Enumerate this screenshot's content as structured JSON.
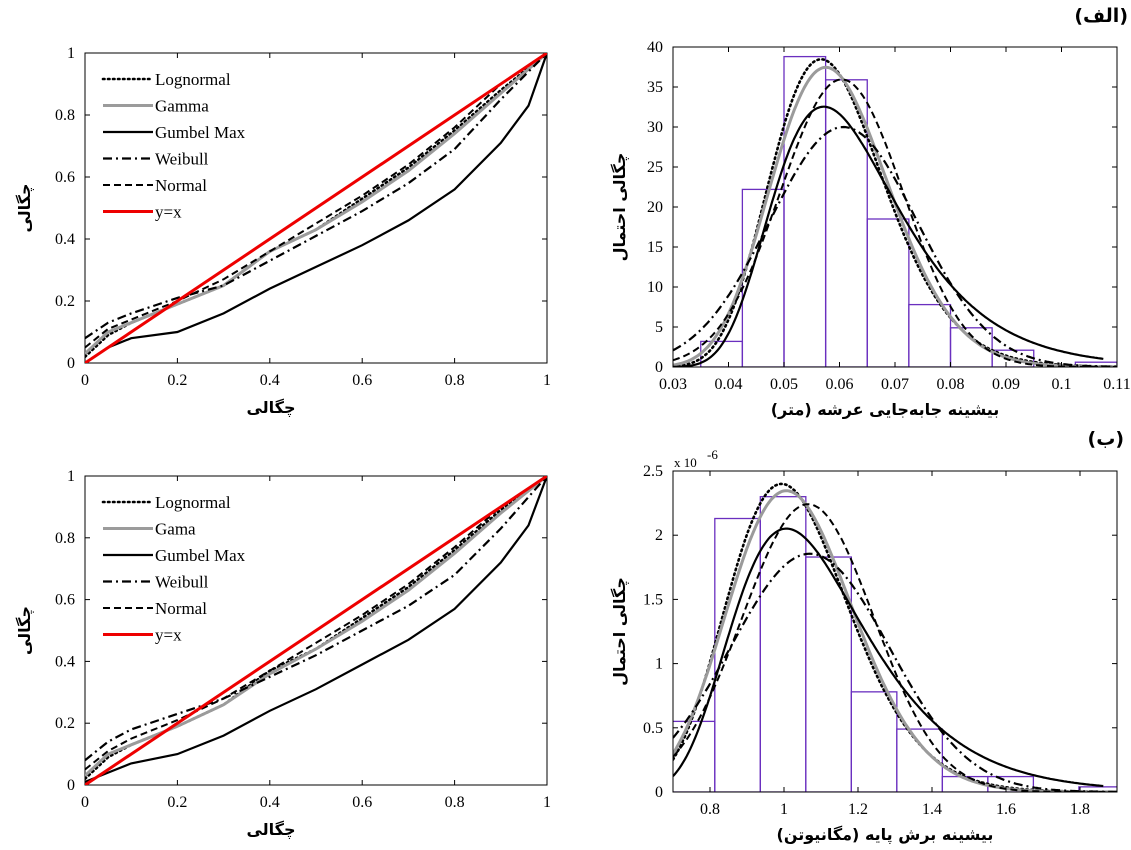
{
  "chart_data": [
    {
      "id": "pp_top",
      "type": "line",
      "subtype": "probability-probability",
      "xlabel": "چگالی",
      "ylabel": "چگالی",
      "xlim": [
        0,
        1
      ],
      "ylim": [
        0,
        1
      ],
      "xticks": [
        "0",
        "0.2",
        "0.4",
        "0.6",
        "0.8",
        "1"
      ],
      "yticks": [
        "0",
        "0.2",
        "0.4",
        "0.6",
        "0.8",
        "1"
      ],
      "legend_position": "top-left",
      "series": [
        {
          "name": "Lognormal",
          "style": "dotted",
          "color": "#000000",
          "points": [
            [
              0,
              0.02
            ],
            [
              0.05,
              0.09
            ],
            [
              0.1,
              0.13
            ],
            [
              0.2,
              0.19
            ],
            [
              0.3,
              0.25
            ],
            [
              0.4,
              0.36
            ],
            [
              0.5,
              0.43
            ],
            [
              0.6,
              0.53
            ],
            [
              0.7,
              0.63
            ],
            [
              0.8,
              0.75
            ],
            [
              0.9,
              0.88
            ],
            [
              1,
              1
            ]
          ]
        },
        {
          "name": "Gamma",
          "style": "solid-gray",
          "color": "#999999",
          "points": [
            [
              0,
              0.03
            ],
            [
              0.05,
              0.1
            ],
            [
              0.1,
              0.13
            ],
            [
              0.2,
              0.19
            ],
            [
              0.3,
              0.25
            ],
            [
              0.4,
              0.36
            ],
            [
              0.5,
              0.43
            ],
            [
              0.6,
              0.52
            ],
            [
              0.7,
              0.62
            ],
            [
              0.8,
              0.74
            ],
            [
              0.9,
              0.87
            ],
            [
              1,
              1
            ]
          ]
        },
        {
          "name": "Gumbel Max",
          "style": "solid",
          "color": "#000000",
          "points": [
            [
              0,
              0.0
            ],
            [
              0.05,
              0.05
            ],
            [
              0.1,
              0.08
            ],
            [
              0.2,
              0.1
            ],
            [
              0.3,
              0.16
            ],
            [
              0.4,
              0.24
            ],
            [
              0.5,
              0.31
            ],
            [
              0.6,
              0.38
            ],
            [
              0.7,
              0.46
            ],
            [
              0.8,
              0.56
            ],
            [
              0.9,
              0.71
            ],
            [
              0.96,
              0.83
            ],
            [
              1,
              1
            ]
          ]
        },
        {
          "name": "Weibull",
          "style": "dash-dot",
          "color": "#000000",
          "points": [
            [
              0,
              0.08
            ],
            [
              0.05,
              0.13
            ],
            [
              0.1,
              0.16
            ],
            [
              0.2,
              0.21
            ],
            [
              0.3,
              0.25
            ],
            [
              0.4,
              0.33
            ],
            [
              0.5,
              0.41
            ],
            [
              0.6,
              0.49
            ],
            [
              0.7,
              0.58
            ],
            [
              0.8,
              0.69
            ],
            [
              0.9,
              0.85
            ],
            [
              1,
              1
            ]
          ]
        },
        {
          "name": "Normal",
          "style": "dashed",
          "color": "#000000",
          "points": [
            [
              0,
              0.05
            ],
            [
              0.05,
              0.11
            ],
            [
              0.1,
              0.14
            ],
            [
              0.2,
              0.2
            ],
            [
              0.3,
              0.27
            ],
            [
              0.4,
              0.36
            ],
            [
              0.5,
              0.45
            ],
            [
              0.6,
              0.54
            ],
            [
              0.7,
              0.64
            ],
            [
              0.8,
              0.76
            ],
            [
              0.9,
              0.9
            ],
            [
              1,
              1
            ]
          ]
        },
        {
          "name": "y=x",
          "style": "solid-red",
          "color": "#ee0000",
          "points": [
            [
              0,
              0
            ],
            [
              1,
              1
            ]
          ]
        }
      ]
    },
    {
      "id": "hist_top",
      "type": "bar",
      "subtype": "histogram-with-pdf",
      "xlabel": "بیشینه جابه‌جایی عرشه (متر)",
      "ylabel": "چگالی احتمال",
      "xlim": [
        0.03,
        0.11
      ],
      "ylim": [
        0,
        40
      ],
      "xticks": [
        "0.03",
        "0.04",
        "0.05",
        "0.06",
        "0.07",
        "0.08",
        "0.09",
        "0.1",
        "0.11"
      ],
      "yticks": [
        "0",
        "5",
        "10",
        "15",
        "20",
        "25",
        "30",
        "35",
        "40"
      ],
      "bin_edges": [
        0.035,
        0.0425,
        0.05,
        0.0575,
        0.065,
        0.0725,
        0.08,
        0.0875,
        0.095,
        0.1025,
        0.11
      ],
      "values": [
        3.2,
        22.2,
        38.8,
        35.9,
        18.5,
        7.8,
        4.9,
        2.1,
        0,
        0.6
      ],
      "bar_color": "#6a2fbf",
      "series": [
        {
          "name": "Lognormal",
          "style": "dotted",
          "dist": "lognormal",
          "mean": 0.0595,
          "sd": 0.0108
        },
        {
          "name": "Gamma",
          "style": "solid-gray",
          "dist": "gamma",
          "mean": 0.0595,
          "sd": 0.0108
        },
        {
          "name": "Gumbel Max",
          "style": "solid",
          "dist": "gumbel",
          "mean": 0.0637,
          "sd": 0.0145
        },
        {
          "name": "Weibull",
          "style": "dash-dot",
          "dist": "normal",
          "mean": 0.0607,
          "sd": 0.0133
        },
        {
          "name": "Normal",
          "style": "dashed",
          "dist": "normal",
          "mean": 0.0604,
          "sd": 0.0111
        }
      ]
    },
    {
      "id": "pp_bottom",
      "type": "line",
      "subtype": "probability-probability",
      "xlabel": "چگالی",
      "ylabel": "چگالی",
      "xlim": [
        0,
        1
      ],
      "ylim": [
        0,
        1
      ],
      "xticks": [
        "0",
        "0.2",
        "0.4",
        "0.6",
        "0.8",
        "1"
      ],
      "yticks": [
        "0",
        "0.2",
        "0.4",
        "0.6",
        "0.8",
        "1"
      ],
      "legend_position": "top-left",
      "series": [
        {
          "name": "Lognormal",
          "style": "dotted",
          "color": "#000000",
          "points": [
            [
              0,
              0.02
            ],
            [
              0.05,
              0.09
            ],
            [
              0.1,
              0.13
            ],
            [
              0.2,
              0.19
            ],
            [
              0.3,
              0.26
            ],
            [
              0.4,
              0.37
            ],
            [
              0.5,
              0.44
            ],
            [
              0.6,
              0.54
            ],
            [
              0.7,
              0.64
            ],
            [
              0.8,
              0.76
            ],
            [
              0.9,
              0.89
            ],
            [
              1,
              1
            ]
          ]
        },
        {
          "name": "Gama",
          "style": "solid-gray",
          "color": "#aaaaaa",
          "points": [
            [
              0,
              0.03
            ],
            [
              0.05,
              0.1
            ],
            [
              0.1,
              0.13
            ],
            [
              0.2,
              0.19
            ],
            [
              0.3,
              0.26
            ],
            [
              0.4,
              0.36
            ],
            [
              0.5,
              0.44
            ],
            [
              0.6,
              0.53
            ],
            [
              0.7,
              0.63
            ],
            [
              0.8,
              0.75
            ],
            [
              0.9,
              0.88
            ],
            [
              1,
              1
            ]
          ]
        },
        {
          "name": "Gumbel Max",
          "style": "solid",
          "color": "#000000",
          "points": [
            [
              0,
              0.01
            ],
            [
              0.05,
              0.04
            ],
            [
              0.1,
              0.07
            ],
            [
              0.2,
              0.1
            ],
            [
              0.3,
              0.16
            ],
            [
              0.4,
              0.24
            ],
            [
              0.5,
              0.31
            ],
            [
              0.6,
              0.39
            ],
            [
              0.7,
              0.47
            ],
            [
              0.8,
              0.57
            ],
            [
              0.9,
              0.72
            ],
            [
              0.96,
              0.84
            ],
            [
              1,
              1
            ]
          ]
        },
        {
          "name": "Weibull",
          "style": "dash-dot",
          "color": "#000000",
          "points": [
            [
              0,
              0.08
            ],
            [
              0.05,
              0.14
            ],
            [
              0.1,
              0.18
            ],
            [
              0.2,
              0.23
            ],
            [
              0.3,
              0.28
            ],
            [
              0.4,
              0.35
            ],
            [
              0.5,
              0.42
            ],
            [
              0.6,
              0.5
            ],
            [
              0.7,
              0.58
            ],
            [
              0.8,
              0.68
            ],
            [
              0.9,
              0.83
            ],
            [
              1,
              1
            ]
          ]
        },
        {
          "name": "Normal",
          "style": "dashed",
          "color": "#000000",
          "points": [
            [
              0,
              0.05
            ],
            [
              0.05,
              0.11
            ],
            [
              0.1,
              0.15
            ],
            [
              0.2,
              0.21
            ],
            [
              0.3,
              0.28
            ],
            [
              0.4,
              0.37
            ],
            [
              0.5,
              0.46
            ],
            [
              0.6,
              0.55
            ],
            [
              0.7,
              0.65
            ],
            [
              0.8,
              0.77
            ],
            [
              0.9,
              0.9
            ],
            [
              1,
              1
            ]
          ]
        },
        {
          "name": "y=x",
          "style": "solid-red",
          "color": "#ee0000",
          "points": [
            [
              0,
              0
            ],
            [
              1,
              1
            ]
          ]
        }
      ]
    },
    {
      "id": "hist_bottom",
      "type": "bar",
      "subtype": "histogram-with-pdf",
      "xlabel": "بیشینه برش پایه (مگانیوتن)",
      "ylabel": "چگالی احتمال",
      "multiplier": "x 10",
      "multiplier_exp": "-6",
      "xlim": [
        0.7,
        1.9
      ],
      "ylim": [
        0,
        2.5
      ],
      "xticks": [
        "0.8",
        "1",
        "1.2",
        "1.4",
        "1.6",
        "1.8"
      ],
      "yticks": [
        "0",
        "0.5",
        "1",
        "1.5",
        "2",
        "2.5"
      ],
      "bin_edges": [
        0.69,
        0.813,
        0.936,
        1.059,
        1.182,
        1.305,
        1.428,
        1.551,
        1.674,
        1.797,
        1.92
      ],
      "values": [
        0.55,
        2.13,
        2.3,
        1.83,
        0.78,
        0.49,
        0.12,
        0.12,
        0,
        0.04
      ],
      "bar_color": "#6a2fbf",
      "series": [
        {
          "name": "Lognormal",
          "style": "dotted",
          "dist": "lognormal",
          "mean": 1.035,
          "sd": 0.172
        },
        {
          "name": "Gama",
          "style": "solid-gray",
          "dist": "gamma",
          "mean": 1.035,
          "sd": 0.172
        },
        {
          "name": "Gumbel Max",
          "style": "solid",
          "dist": "gumbel",
          "mean": 1.11,
          "sd": 0.23
        },
        {
          "name": "Weibull",
          "style": "dash-dot",
          "dist": "normal",
          "mean": 1.07,
          "sd": 0.215
        },
        {
          "name": "Normal",
          "style": "dashed",
          "dist": "normal",
          "mean": 1.065,
          "sd": 0.178
        }
      ]
    }
  ],
  "panels": {
    "top": "(الف)",
    "bottom": "(ب)"
  }
}
